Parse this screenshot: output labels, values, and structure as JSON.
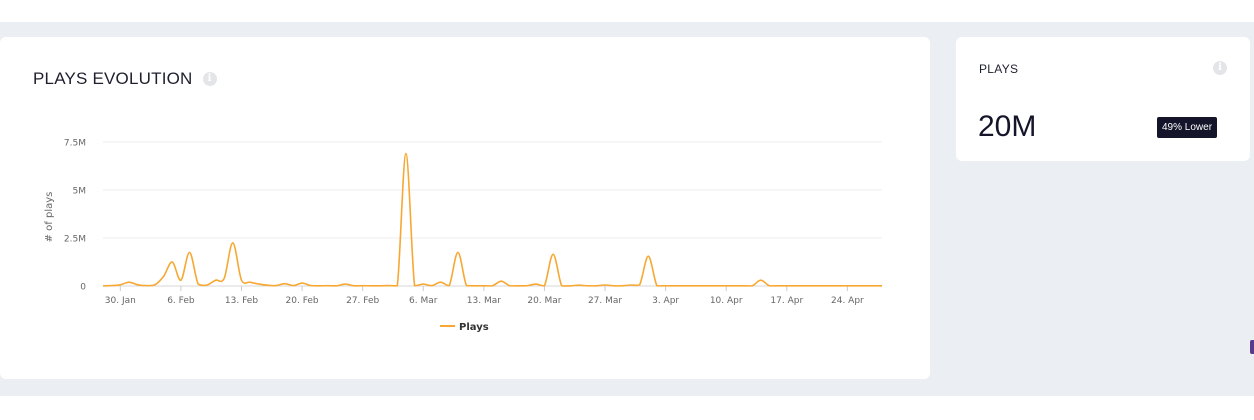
{
  "plays_evolution": {
    "title": "PLAYS EVOLUTION",
    "info_icon": "info-icon"
  },
  "plays_card": {
    "label": "PLAYS",
    "value": "20M",
    "badge": "49% Lower",
    "info_icon": "info-icon"
  },
  "colors": {
    "line": "#f7a832",
    "grid": "#eeeeee",
    "badge_bg": "#14142a"
  },
  "chart_data": {
    "type": "line",
    "title": "",
    "xlabel": "",
    "ylabel": "# of plays",
    "ylim": [
      0,
      7500000
    ],
    "yticks": [
      0,
      2500000,
      5000000,
      7500000
    ],
    "ytick_labels": [
      "0",
      "2.5M",
      "5M",
      "7.5M"
    ],
    "xtick_labels": [
      "30. Jan",
      "6. Feb",
      "13. Feb",
      "20. Feb",
      "27. Feb",
      "6. Mar",
      "13. Mar",
      "20. Mar",
      "27. Mar",
      "3. Apr",
      "10. Apr",
      "17. Apr",
      "24. Apr"
    ],
    "xtick_dates": [
      "2022-01-30",
      "2022-02-06",
      "2022-02-13",
      "2022-02-20",
      "2022-02-27",
      "2022-03-06",
      "2022-03-13",
      "2022-03-20",
      "2022-03-27",
      "2022-04-03",
      "2022-04-10",
      "2022-04-17",
      "2022-04-24"
    ],
    "xlim": [
      "2022-01-28",
      "2022-04-28"
    ],
    "legend": "bottom-center",
    "grid": true,
    "series": [
      {
        "name": "Plays",
        "color": "#f7a832",
        "points": [
          [
            "2022-01-28",
            10000
          ],
          [
            "2022-01-29",
            20000
          ],
          [
            "2022-01-30",
            60000
          ],
          [
            "2022-01-31",
            200000
          ],
          [
            "2022-02-01",
            60000
          ],
          [
            "2022-02-02",
            20000
          ],
          [
            "2022-02-03",
            60000
          ],
          [
            "2022-02-04",
            500000
          ],
          [
            "2022-02-05",
            1250000
          ],
          [
            "2022-02-06",
            300000
          ],
          [
            "2022-02-07",
            1750000
          ],
          [
            "2022-02-08",
            100000
          ],
          [
            "2022-02-09",
            50000
          ],
          [
            "2022-02-10",
            300000
          ],
          [
            "2022-02-11",
            400000
          ],
          [
            "2022-02-12",
            2250000
          ],
          [
            "2022-02-13",
            300000
          ],
          [
            "2022-02-14",
            200000
          ],
          [
            "2022-02-15",
            100000
          ],
          [
            "2022-02-16",
            40000
          ],
          [
            "2022-02-17",
            20000
          ],
          [
            "2022-02-18",
            120000
          ],
          [
            "2022-02-19",
            20000
          ],
          [
            "2022-02-20",
            150000
          ],
          [
            "2022-02-21",
            20000
          ],
          [
            "2022-02-22",
            10000
          ],
          [
            "2022-02-23",
            15000
          ],
          [
            "2022-02-24",
            10000
          ],
          [
            "2022-02-25",
            100000
          ],
          [
            "2022-02-26",
            10000
          ],
          [
            "2022-02-27",
            15000
          ],
          [
            "2022-02-28",
            10000
          ],
          [
            "2022-03-01",
            10000
          ],
          [
            "2022-03-02",
            20000
          ],
          [
            "2022-03-03",
            10000
          ],
          [
            "2022-03-04",
            6900000
          ],
          [
            "2022-03-05",
            20000
          ],
          [
            "2022-03-06",
            100000
          ],
          [
            "2022-03-07",
            20000
          ],
          [
            "2022-03-08",
            200000
          ],
          [
            "2022-03-09",
            20000
          ],
          [
            "2022-03-10",
            1750000
          ],
          [
            "2022-03-11",
            20000
          ],
          [
            "2022-03-12",
            10000
          ],
          [
            "2022-03-13",
            10000
          ],
          [
            "2022-03-14",
            10000
          ],
          [
            "2022-03-15",
            250000
          ],
          [
            "2022-03-16",
            10000
          ],
          [
            "2022-03-17",
            10000
          ],
          [
            "2022-03-18",
            15000
          ],
          [
            "2022-03-19",
            100000
          ],
          [
            "2022-03-20",
            10000
          ],
          [
            "2022-03-21",
            1650000
          ],
          [
            "2022-03-22",
            10000
          ],
          [
            "2022-03-23",
            10000
          ],
          [
            "2022-03-24",
            40000
          ],
          [
            "2022-03-25",
            10000
          ],
          [
            "2022-03-26",
            10000
          ],
          [
            "2022-03-27",
            50000
          ],
          [
            "2022-03-28",
            10000
          ],
          [
            "2022-03-29",
            10000
          ],
          [
            "2022-03-30",
            50000
          ],
          [
            "2022-03-31",
            60000
          ],
          [
            "2022-04-01",
            1550000
          ],
          [
            "2022-04-02",
            10000
          ],
          [
            "2022-04-03",
            10000
          ],
          [
            "2022-04-04",
            10000
          ],
          [
            "2022-04-05",
            10000
          ],
          [
            "2022-04-06",
            10000
          ],
          [
            "2022-04-07",
            10000
          ],
          [
            "2022-04-08",
            10000
          ],
          [
            "2022-04-09",
            10000
          ],
          [
            "2022-04-10",
            10000
          ],
          [
            "2022-04-11",
            10000
          ],
          [
            "2022-04-12",
            10000
          ],
          [
            "2022-04-13",
            10000
          ],
          [
            "2022-04-14",
            300000
          ],
          [
            "2022-04-15",
            10000
          ],
          [
            "2022-04-16",
            10000
          ],
          [
            "2022-04-17",
            10000
          ],
          [
            "2022-04-18",
            10000
          ],
          [
            "2022-04-19",
            10000
          ],
          [
            "2022-04-20",
            10000
          ],
          [
            "2022-04-21",
            10000
          ],
          [
            "2022-04-22",
            10000
          ],
          [
            "2022-04-23",
            10000
          ],
          [
            "2022-04-24",
            10000
          ],
          [
            "2022-04-25",
            10000
          ],
          [
            "2022-04-26",
            10000
          ],
          [
            "2022-04-27",
            10000
          ],
          [
            "2022-04-28",
            10000
          ]
        ]
      }
    ]
  }
}
